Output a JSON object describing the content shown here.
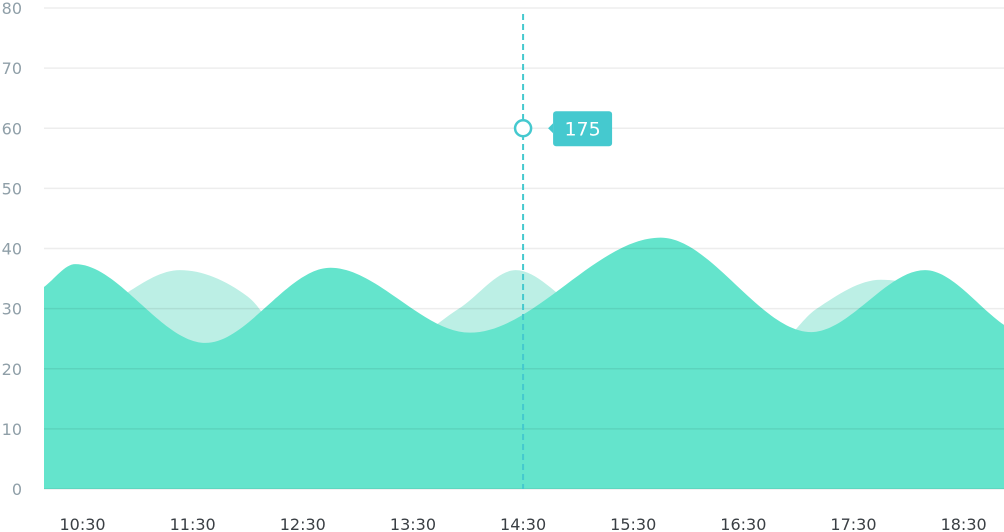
{
  "chart_data": {
    "type": "area",
    "title": "",
    "xlabel": "",
    "ylabel": "",
    "ylim": [
      0,
      80
    ],
    "yticks": [
      "0",
      "10",
      "20",
      "30",
      "40",
      "50",
      "60",
      "70",
      "80"
    ],
    "xticks": [
      "10:30",
      "11:30",
      "12:30",
      "13:30",
      "14:30",
      "15:30",
      "16:30",
      "17:30",
      "18:30"
    ],
    "xlim": [
      "10:09",
      "18:52"
    ],
    "grid": true,
    "series": [
      {
        "color": "#bcefe5",
        "points": [
          [
            "10:09",
            25
          ],
          [
            "10:40",
            30
          ],
          [
            "11:23",
            36.4
          ],
          [
            "12:00",
            32
          ],
          [
            "12:30",
            22
          ],
          [
            "13:10",
            22
          ],
          [
            "13:55",
            30
          ],
          [
            "14:26",
            36.4
          ],
          [
            "15:00",
            30
          ],
          [
            "15:45",
            22
          ],
          [
            "16:40",
            22
          ],
          [
            "17:10",
            30
          ],
          [
            "17:45",
            34.8
          ],
          [
            "18:20",
            32
          ],
          [
            "18:52",
            25
          ]
        ]
      },
      {
        "color": "#64e4cc",
        "points": [
          [
            "10:09",
            33.6
          ],
          [
            "10:26",
            37.4
          ],
          [
            "11:37",
            24.3
          ],
          [
            "12:45",
            36.8
          ],
          [
            "14:01",
            26
          ],
          [
            "15:45",
            41.8
          ],
          [
            "17:07",
            26.1
          ],
          [
            "18:09",
            36.4
          ],
          [
            "18:52",
            27.3
          ]
        ]
      }
    ],
    "tooltip": {
      "x": "14:30",
      "y": 60,
      "label": "175",
      "color": "#45c9cf"
    }
  }
}
